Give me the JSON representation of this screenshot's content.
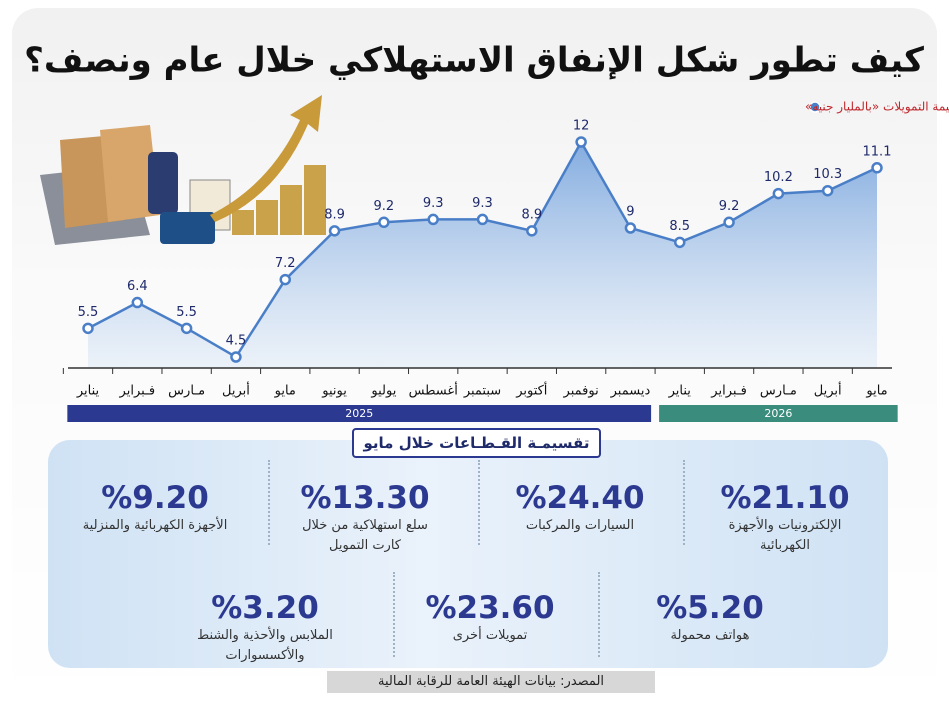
{
  "chart_data": {
    "type": "line",
    "title": "كيف تطور شكل الإنفاق الاستهلاكي خلال عام ونصف؟",
    "categories": [
      "يناير",
      "فـبراير",
      "مـارس",
      "أبريل",
      "مايو",
      "يونيو",
      "يوليو",
      "أغسطس",
      "سبتمبر",
      "أكتوبر",
      "نوفمبر",
      "ديسمبر",
      "يناير",
      "فـبراير",
      "مـارس",
      "أبريل",
      "مايو"
    ],
    "groups": [
      {
        "label": "2025",
        "color": "#2b3990"
      },
      {
        "label": "2026",
        "color": "#3a8c7c"
      }
    ],
    "series": [
      {
        "name": "قيمة التمويلات «بالمليار جنيه»",
        "color": "#4a7fc8",
        "values": [
          5.5,
          6.4,
          5.5,
          4.5,
          7.2,
          8.9,
          9.2,
          9.3,
          9.3,
          8.9,
          12,
          9,
          8.5,
          9.2,
          10.2,
          10.3,
          11.1
        ]
      }
    ]
  },
  "breakdown": {
    "title": "تقسيمـة القـطـاعات خلال مايو",
    "items": [
      {
        "value": "%21.10",
        "label": "الإلكترونيات والأجهزة الكهربائية"
      },
      {
        "value": "%24.40",
        "label": "السيارات والمركبات"
      },
      {
        "value": "%13.30",
        "label": "سلع استهلاكية من خلال كارت التمويل"
      },
      {
        "value": "%9.20",
        "label": "الأجهزة الكهربائية والمنزلية"
      },
      {
        "value": "%5.20",
        "label": "هواتف محمولة"
      },
      {
        "value": "%23.60",
        "label": "تمويلات أخرى"
      },
      {
        "value": "%3.20",
        "label": "الملابس والأحذية والشنط والأكسسوارات"
      }
    ]
  },
  "source": "المصدر: بيانات الهيئة العامة للرقابة المالية"
}
